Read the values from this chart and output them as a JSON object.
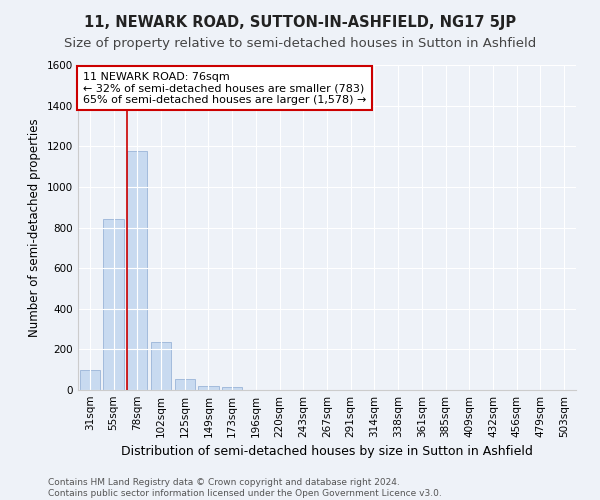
{
  "title": "11, NEWARK ROAD, SUTTON-IN-ASHFIELD, NG17 5JP",
  "subtitle": "Size of property relative to semi-detached houses in Sutton in Ashfield",
  "xlabel": "Distribution of semi-detached houses by size in Sutton in Ashfield",
  "ylabel": "Number of semi-detached properties",
  "categories": [
    "31sqm",
    "55sqm",
    "78sqm",
    "102sqm",
    "125sqm",
    "149sqm",
    "173sqm",
    "196sqm",
    "220sqm",
    "243sqm",
    "267sqm",
    "291sqm",
    "314sqm",
    "338sqm",
    "361sqm",
    "385sqm",
    "409sqm",
    "432sqm",
    "456sqm",
    "479sqm",
    "503sqm"
  ],
  "values": [
    100,
    840,
    1175,
    235,
    52,
    20,
    14,
    0,
    0,
    0,
    0,
    0,
    0,
    0,
    0,
    0,
    0,
    0,
    0,
    0,
    0
  ],
  "bar_color": "#c8daf0",
  "bar_edge_color": "#9ab5d8",
  "property_line_color": "#cc0000",
  "annotation_text": "11 NEWARK ROAD: 76sqm\n← 32% of semi-detached houses are smaller (783)\n65% of semi-detached houses are larger (1,578) →",
  "annotation_box_color": "#ffffff",
  "annotation_box_edge_color": "#cc0000",
  "ylim": [
    0,
    1600
  ],
  "yticks": [
    0,
    200,
    400,
    600,
    800,
    1000,
    1200,
    1400,
    1600
  ],
  "background_color": "#eef2f8",
  "footer": "Contains HM Land Registry data © Crown copyright and database right 2024.\nContains public sector information licensed under the Open Government Licence v3.0.",
  "title_fontsize": 10.5,
  "subtitle_fontsize": 9.5,
  "xlabel_fontsize": 9,
  "ylabel_fontsize": 8.5,
  "tick_fontsize": 7.5,
  "annotation_fontsize": 8,
  "footer_fontsize": 6.5
}
